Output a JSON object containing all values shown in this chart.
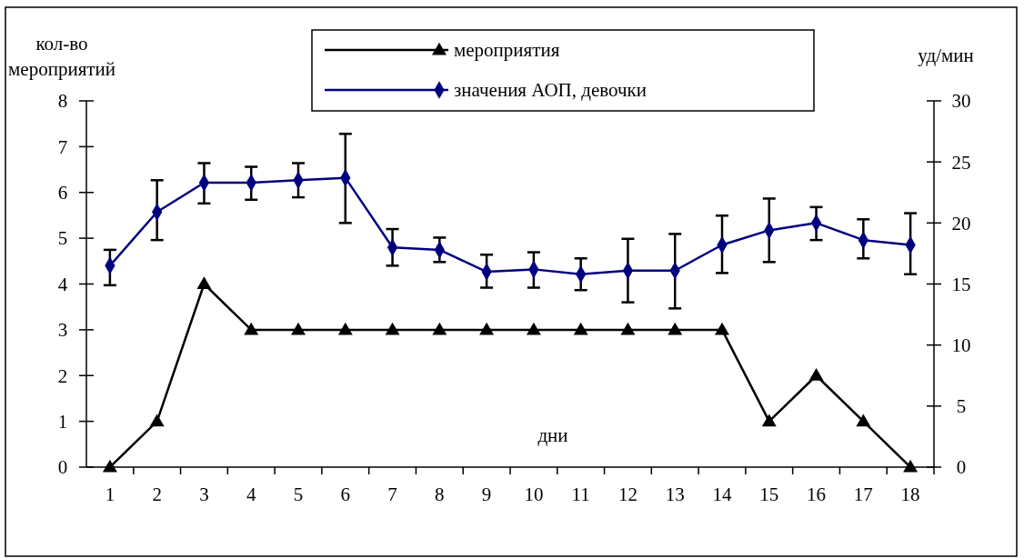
{
  "chart_data": {
    "type": "line",
    "ylabel": "кол-во мероприятий",
    "y2label": "уд/мин",
    "annotations": [
      "дни"
    ],
    "categories": [
      "1",
      "2",
      "3",
      "4",
      "5",
      "6",
      "7",
      "8",
      "9",
      "10",
      "11",
      "12",
      "13",
      "14",
      "15",
      "16",
      "17",
      "18"
    ],
    "ylim": [
      0,
      8
    ],
    "yticks": [
      0,
      1,
      2,
      3,
      4,
      5,
      6,
      7,
      8
    ],
    "y2lim": [
      0,
      30
    ],
    "y2ticks": [
      0,
      5,
      10,
      15,
      20,
      25,
      30
    ],
    "legend": "top",
    "grid": false,
    "line_style": "solid",
    "series": [
      {
        "name": "мероприятия",
        "color": "#000000",
        "marker": "triangle",
        "values": [
          0,
          1,
          4,
          3,
          3,
          3,
          3,
          3,
          3,
          3,
          3,
          3,
          3,
          3,
          1,
          2,
          1,
          0
        ]
      },
      {
        "name": "значения АОП, девочки",
        "color": "#000080",
        "marker": "diamond",
        "axis": "y2",
        "values": [
          16.5,
          20.9,
          23.3,
          23.3,
          23.5,
          23.7,
          18.0,
          17.8,
          16.0,
          16.2,
          15.8,
          16.1,
          16.1,
          18.2,
          19.4,
          20.0,
          18.6,
          18.2
        ],
        "errors": [
          [
            14.9,
            17.8
          ],
          [
            18.6,
            23.5
          ],
          [
            21.6,
            24.9
          ],
          [
            21.9,
            24.6
          ],
          [
            22.1,
            24.9
          ],
          [
            20.0,
            27.3
          ],
          [
            16.5,
            19.5
          ],
          [
            16.8,
            18.8
          ],
          [
            14.7,
            17.4
          ],
          [
            14.7,
            17.6
          ],
          [
            14.5,
            17.1
          ],
          [
            13.5,
            18.7
          ],
          [
            13.0,
            19.1
          ],
          [
            15.9,
            20.6
          ],
          [
            16.8,
            22.0
          ],
          [
            18.6,
            21.3
          ],
          [
            17.1,
            20.3
          ],
          [
            15.8,
            20.8
          ]
        ]
      }
    ]
  }
}
